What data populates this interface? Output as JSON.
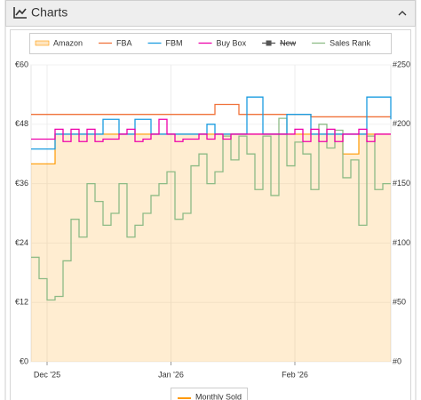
{
  "header": {
    "title": "Charts"
  },
  "chart_data": {
    "type": "line",
    "step": true,
    "grid": true,
    "legend": "top",
    "x": [
      0,
      2,
      4,
      6,
      8,
      10,
      12,
      14,
      16,
      18,
      20,
      22,
      24,
      26,
      28,
      30,
      32,
      34,
      36,
      38,
      40,
      42,
      44,
      46,
      48,
      50,
      52,
      54,
      56,
      58,
      60,
      62,
      64,
      66,
      68,
      70,
      72,
      74,
      76,
      78,
      80,
      82,
      84,
      86,
      88,
      90
    ],
    "xlim": [
      0,
      90
    ],
    "xticks": [
      {
        "value": 4,
        "label": "Dec '25"
      },
      {
        "value": 35,
        "label": "Jan '26"
      },
      {
        "value": 66,
        "label": "Feb '26"
      }
    ],
    "ylim": [
      0,
      60
    ],
    "yticks": [
      {
        "value": 0,
        "label": "€0"
      },
      {
        "value": 12,
        "label": "€12"
      },
      {
        "value": 24,
        "label": "€24"
      },
      {
        "value": 36,
        "label": "€36"
      },
      {
        "value": 48,
        "label": "€48"
      },
      {
        "value": 60,
        "label": "€60"
      }
    ],
    "y2lim": [
      0,
      250
    ],
    "y2ticks": [
      {
        "value": 0,
        "label": "#0"
      },
      {
        "value": 50,
        "label": "#50"
      },
      {
        "value": 100,
        "label": "#100"
      },
      {
        "value": 150,
        "label": "#150"
      },
      {
        "value": 200,
        "label": "#200"
      },
      {
        "value": 250,
        "label": "#250"
      }
    ],
    "series": [
      {
        "name": "Amazon",
        "color": "#ff9900",
        "area": true,
        "visible": true,
        "values": [
          40,
          40,
          40,
          46,
          46,
          46,
          46,
          46,
          46,
          46,
          46,
          46,
          46,
          46,
          46,
          46,
          46,
          46,
          46,
          46,
          46,
          46,
          46,
          46,
          46,
          46,
          46,
          46,
          46,
          46,
          46,
          46,
          46,
          46,
          46,
          46,
          46,
          46,
          46,
          42,
          42,
          46,
          46,
          46,
          46,
          46
        ]
      },
      {
        "name": "FBA",
        "color": "#f0723a",
        "visible": true,
        "values": [
          50,
          50,
          50,
          50,
          50,
          50,
          50,
          50,
          50,
          50,
          50,
          50,
          50,
          50,
          50,
          50,
          50,
          50,
          50,
          50,
          50,
          50,
          50,
          52,
          52,
          52,
          50,
          50,
          50,
          50,
          50,
          50,
          50,
          50,
          50,
          49.5,
          49.5,
          49.5,
          49.5,
          49.5,
          49.5,
          49.5,
          49.5,
          49.5,
          49.5,
          49.5
        ]
      },
      {
        "name": "FBM",
        "color": "#1a9ce0",
        "visible": true,
        "values": [
          43,
          43,
          43,
          46,
          46,
          46,
          46,
          46,
          46,
          49,
          49,
          46,
          46,
          49,
          49,
          46,
          46,
          46,
          46,
          46,
          46,
          46,
          48,
          46,
          46,
          46,
          46,
          53.5,
          53.5,
          46,
          46,
          46,
          50,
          50,
          50,
          46,
          46,
          46,
          46,
          46,
          46,
          46,
          53.5,
          53.5,
          53.5,
          49
        ]
      },
      {
        "name": "Buy Box",
        "color": "#ee00aa",
        "visible": true,
        "values": [
          45,
          45,
          45,
          47,
          44.5,
          47,
          44.5,
          47,
          44.5,
          45,
          45,
          46,
          47,
          44.5,
          45,
          46,
          49,
          46,
          44.5,
          45,
          45,
          46,
          45,
          46,
          45,
          46,
          46,
          46,
          46,
          46,
          46,
          46,
          46,
          47,
          44.5,
          47,
          44.5,
          47,
          44.5,
          46,
          46,
          47,
          44.5,
          46,
          46,
          46
        ]
      },
      {
        "name": "New",
        "color": "#555555",
        "visible": false,
        "values": [
          null,
          null,
          null,
          null,
          null,
          null,
          null,
          null,
          null,
          null,
          null,
          null,
          null,
          null,
          null,
          null,
          null,
          null,
          null,
          null,
          null,
          null,
          null,
          null,
          null,
          null,
          null,
          null,
          null,
          null,
          null,
          null,
          null,
          null,
          null,
          null,
          null,
          null,
          null,
          null,
          null,
          null,
          null,
          null,
          null,
          null
        ]
      },
      {
        "name": "Sales Rank",
        "color": "#8dbb85",
        "axis": "y2",
        "visible": true,
        "values": [
          88,
          70,
          52,
          55,
          85,
          120,
          105,
          150,
          135,
          115,
          125,
          150,
          105,
          115,
          125,
          140,
          150,
          160,
          120,
          125,
          165,
          175,
          150,
          160,
          190,
          170,
          190,
          175,
          145,
          190,
          140,
          205,
          165,
          185,
          175,
          145,
          200,
          180,
          195,
          155,
          170,
          115,
          190,
          145,
          150,
          150
        ]
      }
    ],
    "bottom_legend": {
      "name": "Monthly Sold",
      "color": "#ff9900"
    }
  }
}
